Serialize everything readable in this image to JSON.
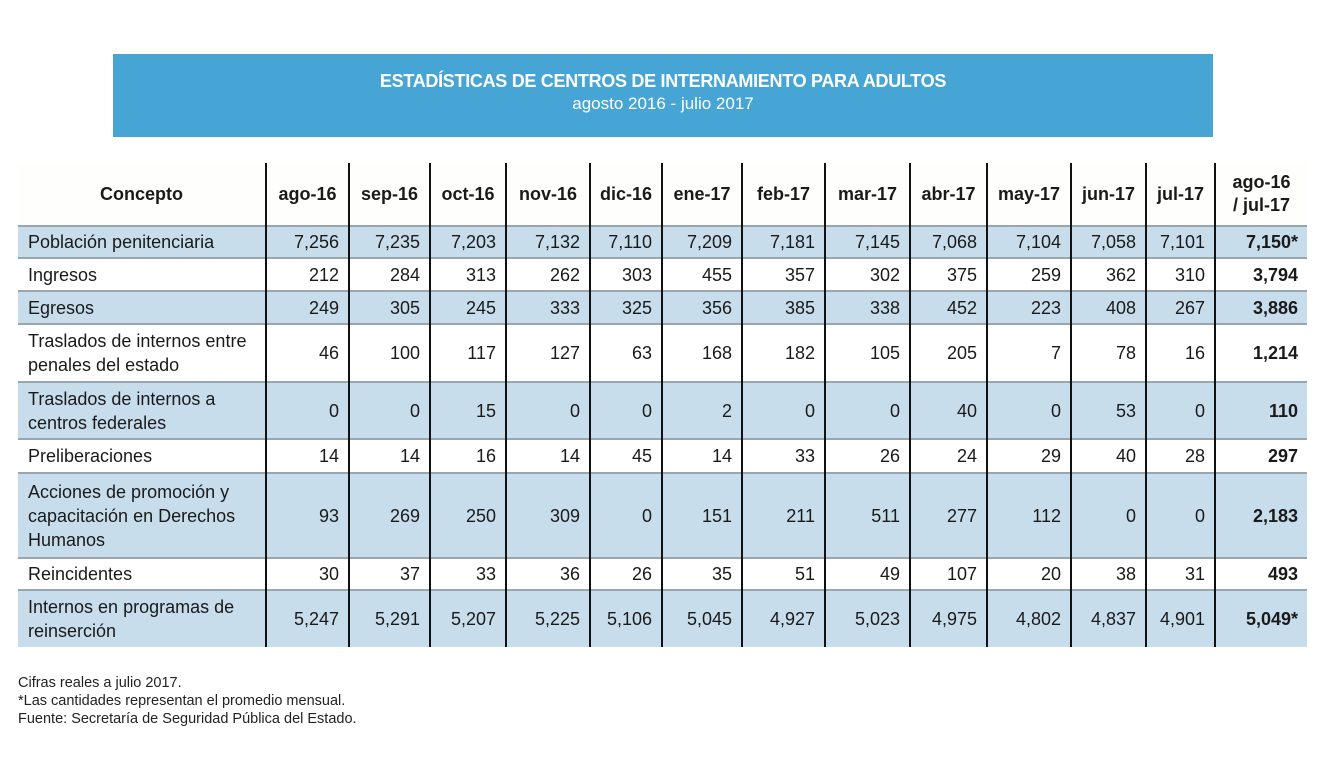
{
  "header": {
    "title": "ESTADÍSTICAS DE CENTROS DE INTERNAMIENTO PARA ADULTOS",
    "subtitle": "agosto 2016  -  julio 2017"
  },
  "colors": {
    "banner": "#47a5d5",
    "shaded_row": "#c8ddec"
  },
  "table": {
    "columns": [
      "Concepto",
      "ago-16",
      "sep-16",
      "oct-16",
      "nov-16",
      "dic-16",
      "ene-17",
      "feb-17",
      "mar-17",
      "abr-17",
      "may-17",
      "jun-17",
      "jul-17",
      "ago-16 / jul-17"
    ],
    "rows": [
      {
        "label": "Población penitenciaria",
        "values": [
          "7,256",
          "7,235",
          "7,203",
          "7,132",
          "7,110",
          "7,209",
          "7,181",
          "7,145",
          "7,068",
          "7,104",
          "7,058",
          "7,101"
        ],
        "total": "7,150*"
      },
      {
        "label": "Ingresos",
        "values": [
          "212",
          "284",
          "313",
          "262",
          "303",
          "455",
          "357",
          "302",
          "375",
          "259",
          "362",
          "310"
        ],
        "total": "3,794"
      },
      {
        "label": "Egresos",
        "values": [
          "249",
          "305",
          "245",
          "333",
          "325",
          "356",
          "385",
          "338",
          "452",
          "223",
          "408",
          "267"
        ],
        "total": "3,886"
      },
      {
        "label": "Traslados de internos entre penales del estado",
        "values": [
          "46",
          "100",
          "117",
          "127",
          "63",
          "168",
          "182",
          "105",
          "205",
          "7",
          "78",
          "16"
        ],
        "total": "1,214"
      },
      {
        "label": "Traslados de internos a centros federales",
        "values": [
          "0",
          "0",
          "15",
          "0",
          "0",
          "2",
          "0",
          "0",
          "40",
          "0",
          "53",
          "0"
        ],
        "total": "110"
      },
      {
        "label": "Preliberaciones",
        "values": [
          "14",
          "14",
          "16",
          "14",
          "45",
          "14",
          "33",
          "26",
          "24",
          "29",
          "40",
          "28"
        ],
        "total": "297"
      },
      {
        "label": "Acciones de promoción y capacitación en Derechos Humanos",
        "values": [
          "93",
          "269",
          "250",
          "309",
          "0",
          "151",
          "211",
          "511",
          "277",
          "112",
          "0",
          "0"
        ],
        "total": "2,183"
      },
      {
        "label": "Reincidentes",
        "values": [
          "30",
          "37",
          "33",
          "36",
          "26",
          "35",
          "51",
          "49",
          "107",
          "20",
          "38",
          "31"
        ],
        "total": "493"
      },
      {
        "label": "Internos en programas de reinserción",
        "values": [
          "5,247",
          "5,291",
          "5,207",
          "5,225",
          "5,106",
          "5,045",
          "4,927",
          "5,023",
          "4,975",
          "4,802",
          "4,837",
          "4,901"
        ],
        "total": "5,049*"
      }
    ]
  },
  "notes": [
    "Cifras reales a julio 2017.",
    "*Las cantidades representan el promedio mensual.",
    "Fuente: Secretaría de Seguridad Pública del Estado."
  ]
}
